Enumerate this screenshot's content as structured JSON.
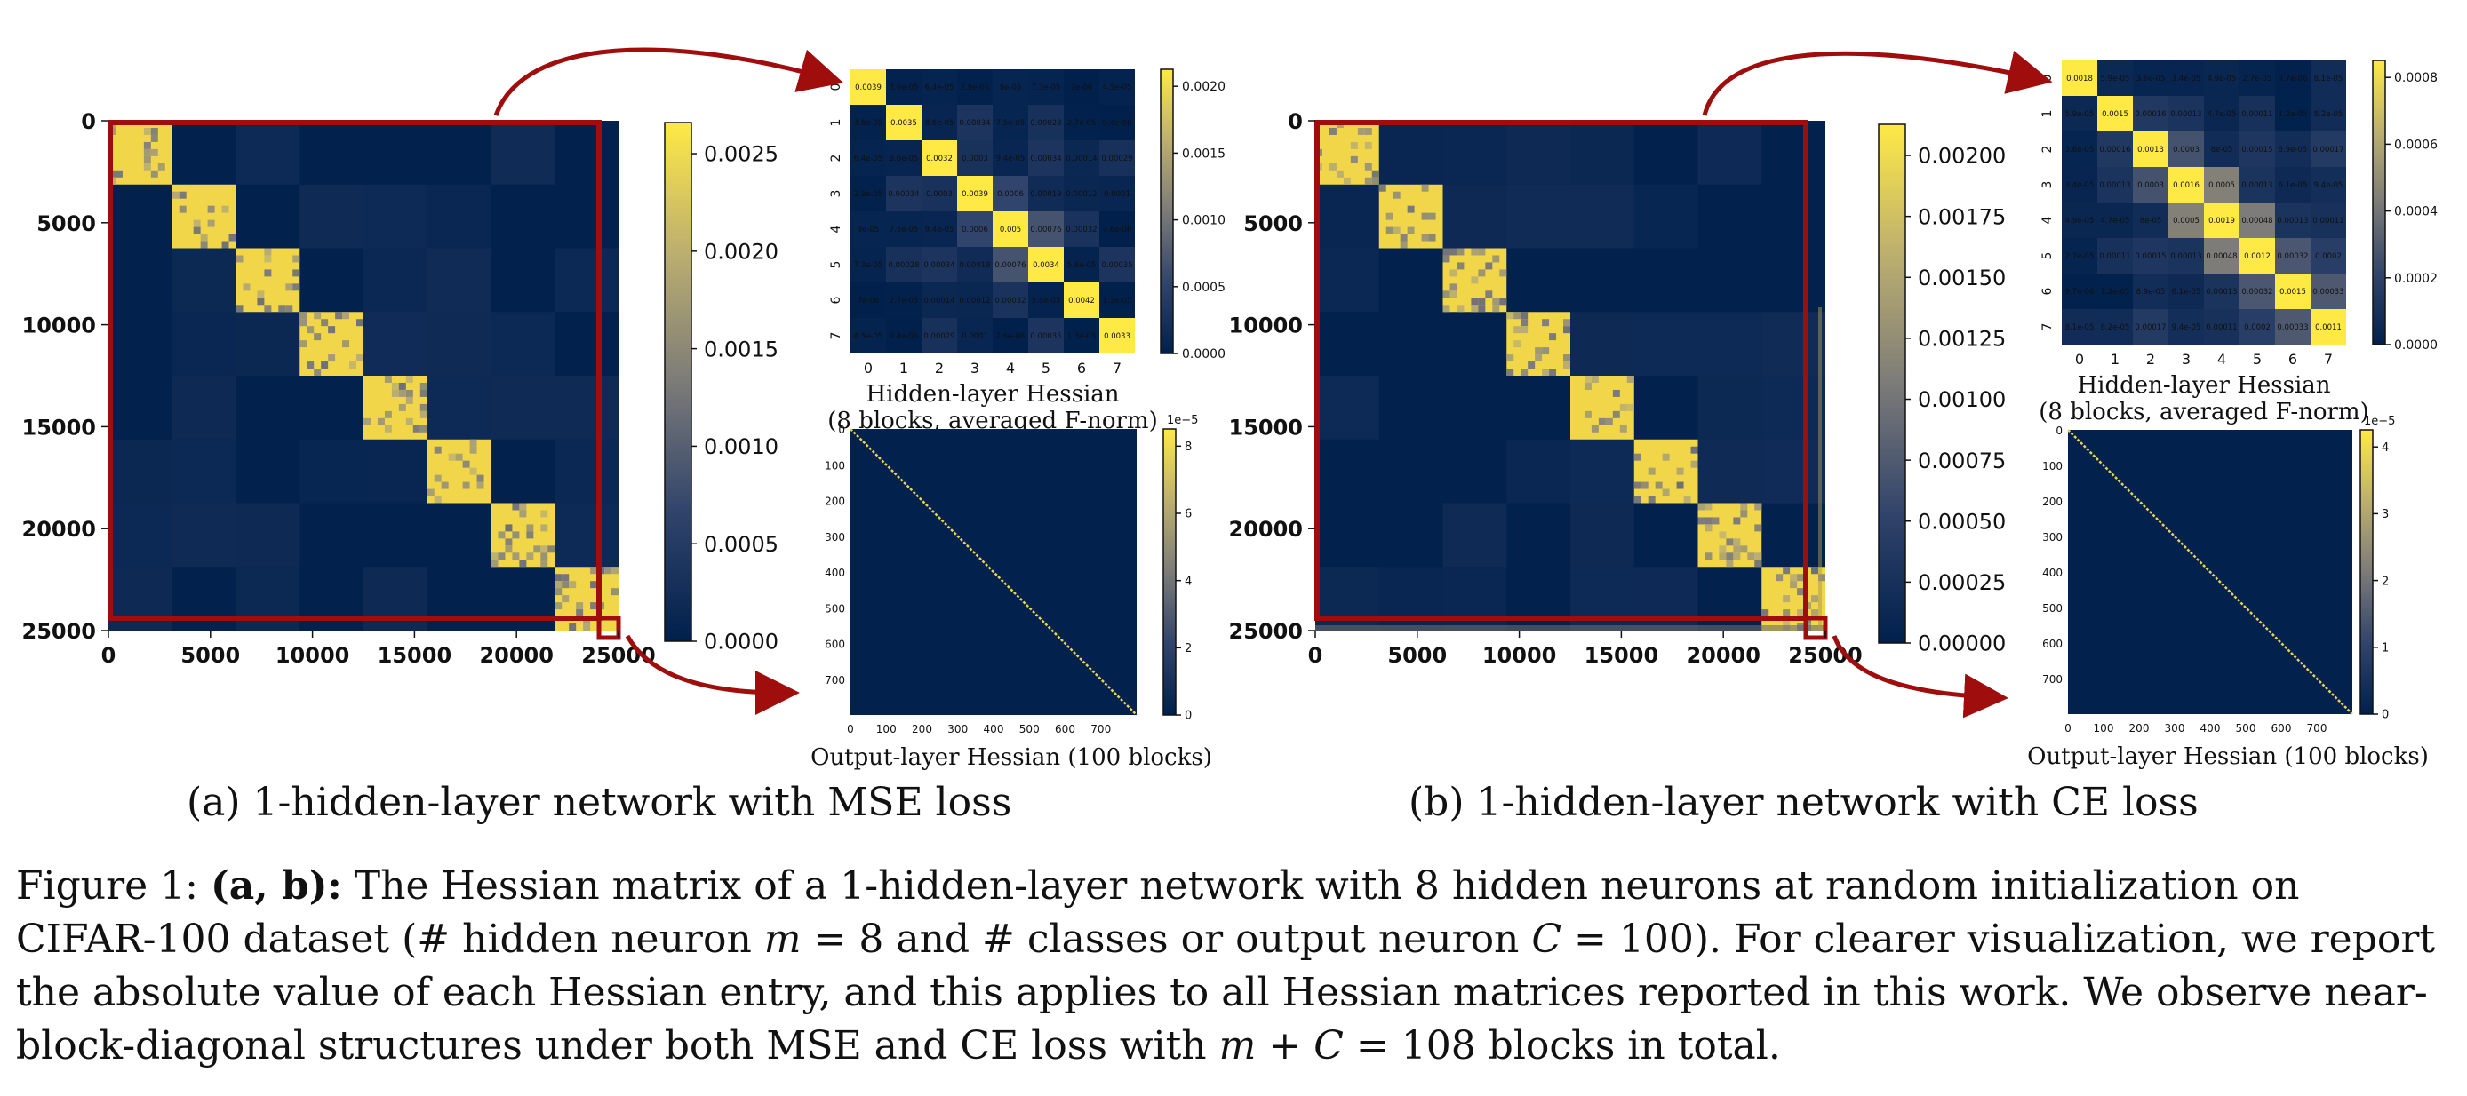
{
  "figure": {
    "panels": [
      {
        "subcaption": "(a) 1-hidden-layer network with MSE loss",
        "full_hessian": {
          "axis_ticks": [
            "0",
            "5000",
            "10000",
            "15000",
            "20000",
            "25000"
          ],
          "colorbar_ticks": [
            "0.0025",
            "0.0020",
            "0.0015",
            "0.0010",
            "0.0005",
            "0.0000"
          ],
          "colorbar_max": 0.0028
        },
        "hidden_inset": {
          "title_line1": "Hidden-layer Hessian",
          "title_line2": "(8 blocks, averaged F-norm)",
          "axis_ticks": [
            "0",
            "1",
            "2",
            "3",
            "4",
            "5",
            "6",
            "7"
          ],
          "colorbar_ticks": [
            "0.0020",
            "0.0015",
            "0.0010",
            "0.0005",
            "0.0000"
          ],
          "colorbar_max": 0.0024,
          "matrix": [
            [
              "0.0039",
              "3.6e-05",
              "6.4e-05",
              "2.9e-05",
              "9e-05",
              "7.3e-05",
              "7e-06",
              "4.5e-05"
            ],
            [
              "3.6e-05",
              "0.0035",
              "8.6e-05",
              "0.00034",
              "7.5e-05",
              "0.00028",
              "2.7e-05",
              "9.4e-06"
            ],
            [
              "6.4e-05",
              "8.6e-05",
              "0.0032",
              "0.0003",
              "9.4e-05",
              "0.00034",
              "0.00014",
              "0.00029"
            ],
            [
              "2.9e-05",
              "0.00034",
              "0.0003",
              "0.0039",
              "0.0006",
              "0.00019",
              "0.00012",
              "0.0001"
            ],
            [
              "9e-05",
              "7.5e-05",
              "9.4e-05",
              "0.0006",
              "0.005",
              "0.00076",
              "0.00032",
              "7.6e-06"
            ],
            [
              "7.3e-05",
              "0.00028",
              "0.00034",
              "0.00019",
              "0.00076",
              "0.0034",
              "5.8e-05",
              "0.00035"
            ],
            [
              "7e-06",
              "2.7e-05",
              "0.00014",
              "0.00012",
              "0.00032",
              "5.8e-05",
              "0.0042",
              "1.3e-05"
            ],
            [
              "4.5e-05",
              "9.4e-06",
              "0.00029",
              "0.0001",
              "7.6e-06",
              "0.00035",
              "1.3e-05",
              "0.0033"
            ]
          ]
        },
        "output_inset": {
          "title": "Output-layer Hessian (100 blocks)",
          "axis_ticks_x": [
            "0",
            "100",
            "200",
            "300",
            "400",
            "500",
            "600",
            "700"
          ],
          "axis_ticks_y": [
            "0",
            "100",
            "200",
            "300",
            "400",
            "500",
            "600",
            "700"
          ],
          "colorbar_ticks": [
            "8",
            "6",
            "4",
            "2",
            "0"
          ],
          "colorbar_exponent": "1e−5",
          "colorbar_max": 9
        }
      },
      {
        "subcaption": "(b) 1-hidden-layer network with CE loss",
        "full_hessian": {
          "axis_ticks": [
            "0",
            "5000",
            "10000",
            "15000",
            "20000",
            "25000"
          ],
          "colorbar_ticks": [
            "0.00200",
            "0.00175",
            "0.00150",
            "0.00125",
            "0.00100",
            "0.00075",
            "0.00050",
            "0.00025",
            "0.00000"
          ],
          "colorbar_max": 0.00222
        },
        "hidden_inset": {
          "title_line1": "Hidden-layer Hessian",
          "title_line2": "(8 blocks, averaged F-norm)",
          "axis_ticks": [
            "0",
            "1",
            "2",
            "3",
            "4",
            "5",
            "6",
            "7"
          ],
          "colorbar_ticks": [
            "0.0008",
            "0.0006",
            "0.0004",
            "0.0002",
            "0.0000"
          ],
          "colorbar_max": 0.00095,
          "matrix": [
            [
              "0.0018",
              "5.9e-05",
              "3.6e-05",
              "3.4e-05",
              "4.9e-05",
              "2.7e-05",
              "9.7e-06",
              "8.1e-05"
            ],
            [
              "5.9e-05",
              "0.0015",
              "0.00016",
              "0.00013",
              "4.7e-05",
              "0.00011",
              "1.2e-05",
              "8.2e-05"
            ],
            [
              "3.6e-05",
              "0.00016",
              "0.0013",
              "0.0003",
              "8e-05",
              "0.00015",
              "8.9e-05",
              "0.00017"
            ],
            [
              "3.4e-05",
              "0.00013",
              "0.0003",
              "0.0016",
              "0.0005",
              "0.00013",
              "6.1e-05",
              "9.4e-05"
            ],
            [
              "4.9e-05",
              "4.7e-05",
              "8e-05",
              "0.0005",
              "0.0019",
              "0.00048",
              "0.00013",
              "0.00011"
            ],
            [
              "2.7e-05",
              "0.00011",
              "0.00015",
              "0.00013",
              "0.00048",
              "0.0012",
              "0.00032",
              "0.0002"
            ],
            [
              "9.7e-06",
              "1.2e-05",
              "8.9e-05",
              "6.1e-05",
              "0.00013",
              "0.00032",
              "0.0015",
              "0.00033"
            ],
            [
              "8.1e-05",
              "8.2e-05",
              "0.00017",
              "9.4e-05",
              "0.00011",
              "0.0002",
              "0.00033",
              "0.0011"
            ]
          ]
        },
        "output_inset": {
          "title": "Output-layer Hessian (100 blocks)",
          "axis_ticks_x": [
            "0",
            "100",
            "200",
            "300",
            "400",
            "500",
            "600",
            "700"
          ],
          "axis_ticks_y": [
            "0",
            "100",
            "200",
            "300",
            "400",
            "500",
            "600",
            "700"
          ],
          "colorbar_ticks": [
            "4",
            "3",
            "2",
            "1",
            "0"
          ],
          "colorbar_exponent": "1e−5",
          "colorbar_max": 4.6
        }
      }
    ]
  },
  "caption": {
    "label": "Figure 1:",
    "bold_part": "(a, b):",
    "segments": [
      {
        "t": "text",
        "v": " The Hessian matrix of a 1-hidden-layer network with 8 hidden neurons at random initialization on CIFAR-100 dataset (# hidden neuron "
      },
      {
        "t": "math",
        "v": "m"
      },
      {
        "t": "text",
        "v": " = 8 and # classes or output neuron "
      },
      {
        "t": "math",
        "v": "C"
      },
      {
        "t": "text",
        "v": " = 100). For clearer visualization, we report the absolute value of each Hessian entry, and this applies to all Hessian matrices reported in this work. We observe near-block-diagonal structures under both MSE and CE loss with "
      },
      {
        "t": "math",
        "v": "m"
      },
      {
        "t": "text",
        "v": " + "
      },
      {
        "t": "math",
        "v": "C"
      },
      {
        "t": "text",
        "v": " = 108 blocks in total."
      }
    ]
  }
}
